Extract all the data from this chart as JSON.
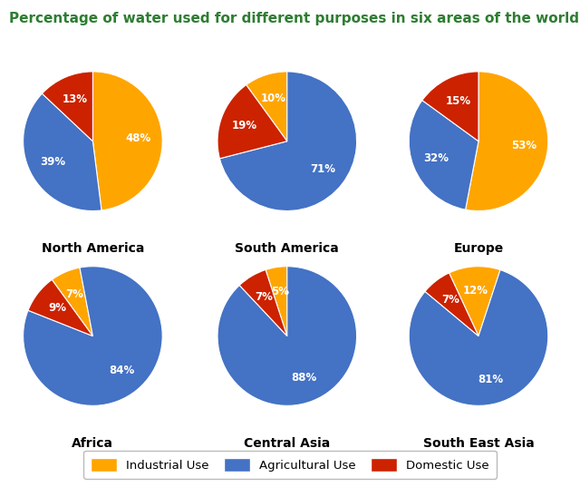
{
  "title": "Percentage of water used for different purposes in six areas of the world.",
  "title_color": "#2e7d32",
  "title_fontsize": 11,
  "regions": [
    "North America",
    "South America",
    "Europe",
    "Africa",
    "Central Asia",
    "South East Asia"
  ],
  "categories": [
    "Industrial Use",
    "Agricultural Use",
    "Domestic Use"
  ],
  "colors": [
    "#FFA500",
    "#4472C4",
    "#CC2200"
  ],
  "data": {
    "North America": [
      48,
      39,
      13
    ],
    "South America": [
      10,
      71,
      19
    ],
    "Europe": [
      53,
      32,
      15
    ],
    "Africa": [
      7,
      84,
      9
    ],
    "Central Asia": [
      5,
      88,
      7
    ],
    "South East Asia": [
      12,
      81,
      7
    ]
  },
  "start_angles": {
    "North America": 90,
    "South America": 126,
    "Europe": 90,
    "Africa": 126,
    "Central Asia": 108,
    "South East Asia": 115
  },
  "label_fontsize": 8.5,
  "legend_fontsize": 9.5,
  "region_fontsize": 10,
  "background_color": "#ffffff"
}
